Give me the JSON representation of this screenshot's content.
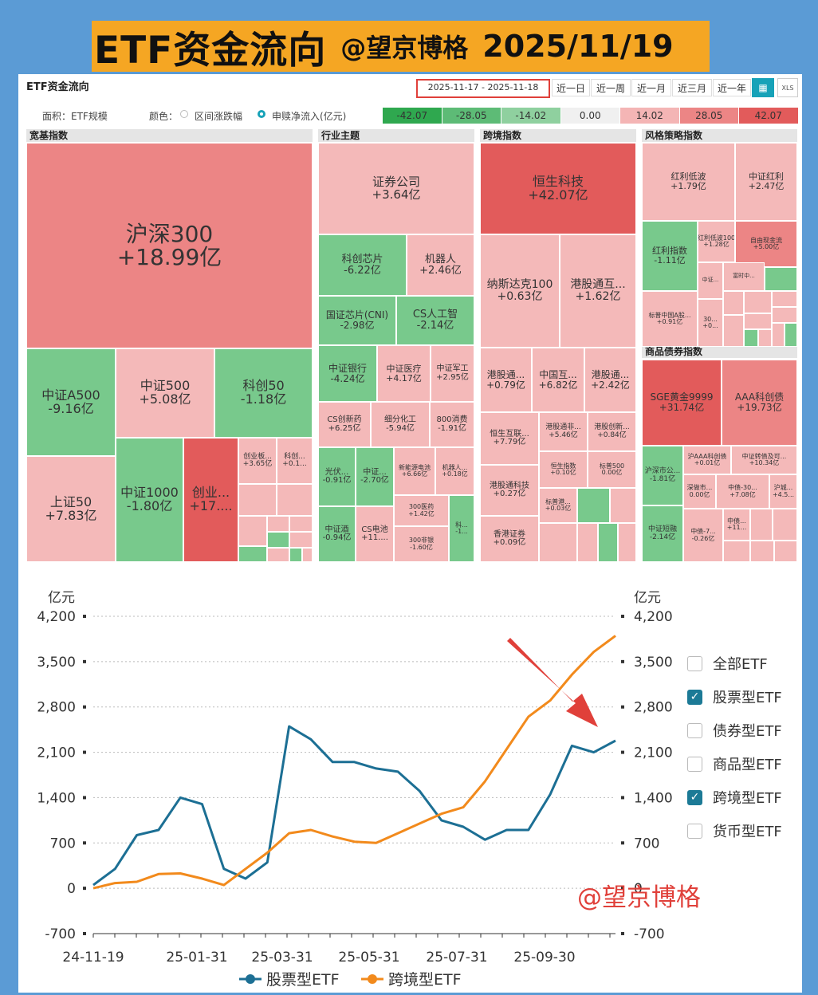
{
  "banner": {
    "title": "ETF资金流向",
    "author": "@望京博格",
    "date": "2025/11/19"
  },
  "panel": {
    "title": "ETF资金流向",
    "date_range": "2025-11-17 - 2025-11-18",
    "periods": [
      "近一日",
      "近一周",
      "近一月",
      "近三月",
      "近一年"
    ],
    "area_label": "面积：ETF规模",
    "color_label": "颜色：",
    "radio_a": "区间涨跌幅",
    "radio_b": "申赎净流入(亿元)",
    "xls": "XLS",
    "legend": [
      {
        "text": "-42.07",
        "color": "#2fa84f"
      },
      {
        "text": "-28.05",
        "color": "#5dbb76"
      },
      {
        "text": "-14.02",
        "color": "#8fd09f"
      },
      {
        "text": "0.00",
        "color": "#f0f0f0"
      },
      {
        "text": "14.02",
        "color": "#f4b5b5"
      },
      {
        "text": "28.05",
        "color": "#ec8585"
      },
      {
        "text": "42.07",
        "color": "#e25b5b"
      }
    ]
  },
  "sections": [
    "宽基指数",
    "行业主题",
    "跨境指数",
    "风格策略指数",
    "商品债券指数"
  ],
  "tiles": {
    "t0": [
      "沪深300",
      "+18.99亿"
    ],
    "t1": [
      "中证A500",
      "-9.16亿"
    ],
    "t2": [
      "中证500",
      "+5.08亿"
    ],
    "t3": [
      "科创50",
      "-1.18亿"
    ],
    "t4": [
      "上证50",
      "+7.83亿"
    ],
    "t5": [
      "中证1000",
      "-1.80亿"
    ],
    "t6": [
      "创业...",
      "+17...."
    ],
    "t7": [
      "创业板...",
      "+3.65亿"
    ],
    "t8": [
      "科创...",
      "+0.1..."
    ],
    "t10": [
      "证券公司",
      "+3.64亿"
    ],
    "t11": [
      "科创芯片",
      "-6.22亿"
    ],
    "t12": [
      "机器人",
      "+2.46亿"
    ],
    "t13": [
      "国证芯片(CNI)",
      "-2.98亿"
    ],
    "t14": [
      "CS人工智",
      "-2.14亿"
    ],
    "t15": [
      "中证银行",
      "-4.24亿"
    ],
    "t16": [
      "中证医疗",
      "+4.17亿"
    ],
    "t17": [
      "中证军工",
      "+2.95亿"
    ],
    "t18": [
      "CS创新药",
      "+6.25亿"
    ],
    "t19": [
      "细分化工",
      "-5.94亿"
    ],
    "t20": [
      "800消费",
      "-1.91亿"
    ],
    "t21": [
      "光伏...",
      "-0.91亿"
    ],
    "t22": [
      "中证...",
      "-2.70亿"
    ],
    "t23": [
      "新能源电池",
      "+6.66亿"
    ],
    "t24": [
      "机器人...",
      "+0.18亿"
    ],
    "t25": [
      "300医药",
      "+1.42亿"
    ],
    "t26": [
      "中证酒",
      "-0.94亿"
    ],
    "t27": [
      "CS电池",
      "+11...."
    ],
    "t28": [
      "300非银",
      "-1.60亿"
    ],
    "t29": [
      "科...",
      "-1..."
    ],
    "t30": [
      "恒生科技",
      "+42.07亿"
    ],
    "t31": [
      "纳斯达克100",
      "+0.63亿"
    ],
    "t32": [
      "港股通互...",
      "+1.62亿"
    ],
    "t33": [
      "港股通...",
      "+0.79亿"
    ],
    "t34": [
      "中国互...",
      "+6.82亿"
    ],
    "t35": [
      "港股通...",
      "+2.42亿"
    ],
    "t36": [
      "恒生互联...",
      "+7.79亿"
    ],
    "t37": [
      "港股通非...",
      "+5.46亿"
    ],
    "t38": [
      "港股创新...",
      "+0.84亿"
    ],
    "t39": [
      "恒生指数",
      "+0.10亿"
    ],
    "t40": [
      "标普500",
      "0.00亿"
    ],
    "t41": [
      "港股通科技",
      "+0.27亿"
    ],
    "t42": [
      "标普港...",
      "+0.03亿"
    ],
    "t43": [
      "香港证券",
      "+0.09亿"
    ],
    "t50": [
      "红利低波",
      "+1.79亿"
    ],
    "t51": [
      "中证红利",
      "+2.47亿"
    ],
    "t52": [
      "红利指数",
      "-1.11亿"
    ],
    "t53": [
      "红利低波100",
      "+1.28亿"
    ],
    "t54": [
      "自由现金流",
      "+5.00亿"
    ],
    "t55": [
      "中证...",
      ""
    ],
    "t56": [
      "富时中...",
      ""
    ],
    "t57": [
      "标普中国A股...",
      "+0.91亿"
    ],
    "t58": [
      "30...",
      "+0..."
    ],
    "t60": [
      "SGE黄金9999",
      "+31.74亿"
    ],
    "t61": [
      "AAA科创债",
      "+19.73亿"
    ],
    "t62": [
      "沪深市公...",
      "-1.81亿"
    ],
    "t63": [
      "沪AAA科创债",
      "+0.01亿"
    ],
    "t64": [
      "中证转债及可...",
      "+10.34亿"
    ],
    "t65": [
      "深做市...",
      "0.00亿"
    ],
    "t66": [
      "中债-30...",
      "+7.08亿"
    ],
    "t67": [
      "沪城...",
      "+4.5..."
    ],
    "t68": [
      "中证短融",
      "-2.14亿"
    ],
    "t69": [
      "中债-7...",
      "-0.26亿"
    ],
    "t70": [
      "中债...",
      "+11..."
    ]
  },
  "watermark": "@望京博格",
  "checkbox_legend": [
    {
      "label": "全部ETF",
      "checked": false
    },
    {
      "label": "股票型ETF",
      "checked": true
    },
    {
      "label": "债券型ETF",
      "checked": false
    },
    {
      "label": "商品型ETF",
      "checked": false
    },
    {
      "label": "跨境型ETF",
      "checked": true
    },
    {
      "label": "货币型ETF",
      "checked": false
    }
  ],
  "chart_data": {
    "type": "line",
    "ylabel_left": "亿元",
    "ylabel_right": "亿元",
    "ylim": [
      -700,
      4200
    ],
    "yticks": [
      "4,200",
      "3,500",
      "2,800",
      "2,100",
      "1,400",
      "700",
      "0",
      "-700"
    ],
    "xticks": [
      "24-11-19",
      "25-01-31",
      "25-03-31",
      "25-05-31",
      "25-07-31",
      "25-09-30"
    ],
    "grid": true,
    "legend_position": "bottom",
    "x": [
      "24-11-19",
      "24-12-01",
      "24-12-15",
      "25-01-01",
      "25-01-20",
      "25-02-05",
      "25-02-20",
      "25-03-10",
      "25-03-25",
      "25-03-31",
      "25-04-15",
      "25-05-01",
      "25-05-15",
      "25-05-31",
      "25-06-15",
      "25-07-01",
      "25-07-15",
      "25-07-31",
      "25-08-15",
      "25-09-01",
      "25-09-15",
      "25-09-30",
      "25-10-15",
      "25-10-30",
      "25-11-18"
    ],
    "series": [
      {
        "name": "股票型ETF",
        "color": "#1c6f94",
        "values": [
          50,
          300,
          820,
          900,
          1400,
          1300,
          300,
          150,
          400,
          2500,
          2300,
          1950,
          1950,
          1850,
          1800,
          1500,
          1050,
          950,
          750,
          900,
          900,
          1450,
          2200,
          2100,
          2280
        ]
      },
      {
        "name": "跨境型ETF",
        "color": "#f28a1c",
        "values": [
          0,
          80,
          100,
          220,
          230,
          150,
          50,
          300,
          550,
          850,
          900,
          800,
          720,
          700,
          850,
          1000,
          1150,
          1250,
          1650,
          2150,
          2650,
          2900,
          3300,
          3650,
          3900
        ]
      }
    ]
  }
}
